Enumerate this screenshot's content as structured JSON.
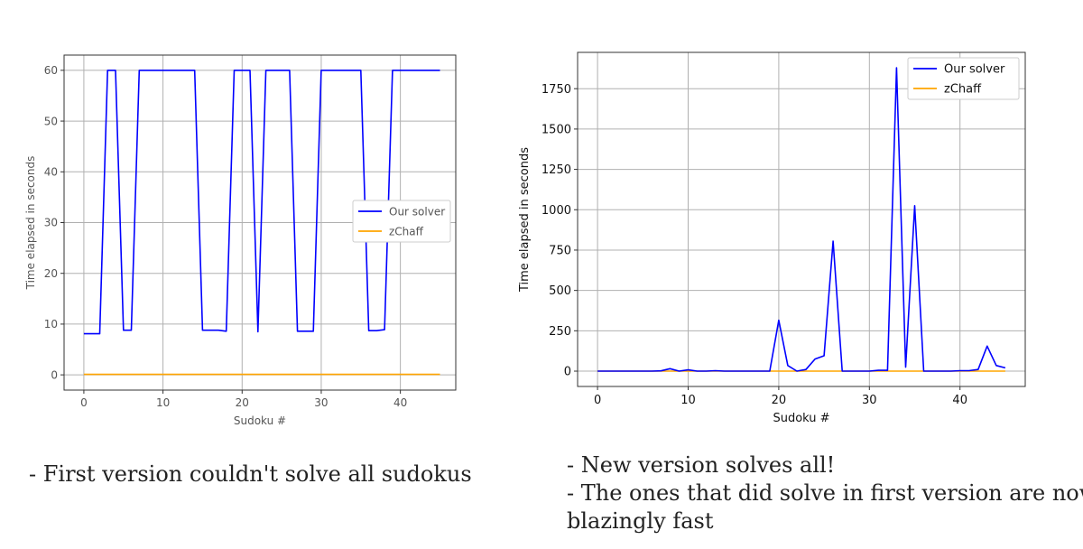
{
  "chart_data": [
    {
      "type": "line",
      "title": "",
      "xlabel": "Sudoku #",
      "ylabel": "Time elapsed in seconds",
      "xlim": [
        -2.5,
        47
      ],
      "ylim": [
        -3,
        63
      ],
      "x_ticks": [
        0,
        10,
        20,
        30,
        40
      ],
      "x_tick_labels": [
        "0",
        "10",
        "20",
        "30",
        "40"
      ],
      "y_ticks": [
        0,
        10,
        20,
        30,
        40,
        50,
        60
      ],
      "y_tick_labels": [
        "0",
        "10",
        "20",
        "30",
        "40",
        "50",
        "60"
      ],
      "grid": true,
      "legend_position": "center-right",
      "x": [
        0,
        1,
        2,
        3,
        4,
        5,
        6,
        7,
        8,
        9,
        10,
        11,
        12,
        13,
        14,
        15,
        16,
        17,
        18,
        19,
        20,
        21,
        22,
        23,
        24,
        25,
        26,
        27,
        28,
        29,
        30,
        31,
        32,
        33,
        34,
        35,
        36,
        37,
        38,
        39,
        40,
        41,
        42,
        43,
        44,
        45
      ],
      "series": [
        {
          "name": "Our solver",
          "color": "#0000ff",
          "values": [
            8.1,
            8.1,
            8.1,
            60,
            60,
            8.8,
            8.8,
            60,
            60,
            60,
            60,
            60,
            60,
            60,
            60,
            8.8,
            8.8,
            8.8,
            8.6,
            60,
            60,
            60,
            8.5,
            60,
            60,
            60,
            60,
            8.6,
            8.6,
            8.6,
            60,
            60,
            60,
            60,
            60,
            60,
            8.7,
            8.7,
            8.9,
            60,
            60,
            60,
            60,
            60,
            60,
            60
          ]
        },
        {
          "name": "zChaff",
          "color": "#ffa500",
          "values": [
            0.1,
            0.1,
            0.1,
            0.1,
            0.1,
            0.1,
            0.1,
            0.1,
            0.1,
            0.1,
            0.1,
            0.1,
            0.1,
            0.1,
            0.1,
            0.1,
            0.1,
            0.1,
            0.1,
            0.1,
            0.1,
            0.1,
            0.1,
            0.1,
            0.1,
            0.1,
            0.1,
            0.1,
            0.1,
            0.1,
            0.1,
            0.1,
            0.1,
            0.1,
            0.1,
            0.1,
            0.1,
            0.1,
            0.1,
            0.1,
            0.1,
            0.1,
            0.1,
            0.1,
            0.1,
            0.1
          ]
        }
      ]
    },
    {
      "type": "line",
      "title": "",
      "xlabel": "Sudoku #",
      "ylabel": "Time elapsed in seconds",
      "xlim": [
        -2.2,
        47.2
      ],
      "ylim": [
        -95,
        1975
      ],
      "x_ticks": [
        0,
        10,
        20,
        30,
        40
      ],
      "x_tick_labels": [
        "0",
        "10",
        "20",
        "30",
        "40"
      ],
      "y_ticks": [
        0,
        250,
        500,
        750,
        1000,
        1250,
        1500,
        1750
      ],
      "y_tick_labels": [
        "0",
        "250",
        "500",
        "750",
        "1000",
        "1250",
        "1500",
        "1750"
      ],
      "grid": true,
      "legend_position": "top-right",
      "x": [
        0,
        1,
        2,
        3,
        4,
        5,
        6,
        7,
        8,
        9,
        10,
        11,
        12,
        13,
        14,
        15,
        16,
        17,
        18,
        19,
        20,
        21,
        22,
        23,
        24,
        25,
        26,
        27,
        28,
        29,
        30,
        31,
        32,
        33,
        34,
        35,
        36,
        37,
        38,
        39,
        40,
        41,
        42,
        43,
        44,
        45
      ],
      "series": [
        {
          "name": "Our solver",
          "color": "#0000ff",
          "values": [
            0,
            0,
            0,
            0,
            0,
            0,
            0,
            2,
            15,
            0,
            8,
            0,
            0,
            3,
            0,
            0,
            0,
            0,
            0,
            0,
            315,
            35,
            0,
            10,
            75,
            95,
            805,
            0,
            0,
            0,
            0,
            5,
            5,
            1880,
            25,
            1025,
            0,
            0,
            0,
            0,
            3,
            3,
            10,
            155,
            35,
            20
          ]
        },
        {
          "name": "zChaff",
          "color": "#ffa500",
          "values": [
            0,
            0,
            0,
            0,
            0,
            0,
            0,
            0,
            0,
            0,
            0,
            0,
            0,
            0,
            0,
            0,
            0,
            0,
            0,
            0,
            0,
            0,
            0,
            0,
            0,
            0,
            0,
            0,
            0,
            0,
            0,
            0,
            0,
            0,
            0,
            0,
            0,
            0,
            0,
            0,
            0,
            0,
            0,
            0,
            0,
            0
          ]
        }
      ]
    }
  ],
  "captions": {
    "left": [
      "- First version couldn't solve all sudokus"
    ],
    "right": [
      "- New version solves all!",
      "- The ones that did solve in first version are now",
      "blazingly fast"
    ]
  }
}
